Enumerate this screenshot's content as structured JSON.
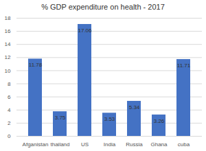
{
  "chart_data": {
    "type": "bar",
    "title": "% GDP expenditure on health - 2017",
    "categories": [
      "Afganistan",
      "thailand",
      "US",
      "India",
      "Russia",
      "Ghana",
      "cuba"
    ],
    "values": [
      11.78,
      3.75,
      17.06,
      3.53,
      5.34,
      3.26,
      11.71
    ],
    "color": "#4472c4",
    "ylim": [
      0,
      18
    ],
    "yticks": [
      0,
      2,
      4,
      6,
      8,
      10,
      12,
      14,
      16,
      18
    ],
    "grid": true,
    "data_labels": true
  }
}
